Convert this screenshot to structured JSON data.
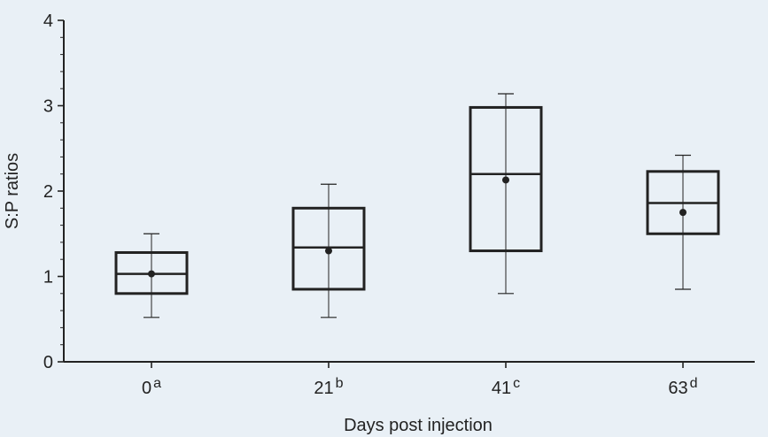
{
  "chart_data": {
    "type": "box",
    "xlabel": "Days post injection",
    "ylabel": "S:P ratios",
    "ylim": [
      0,
      4
    ],
    "yticks": [
      "0",
      "1",
      "2",
      "3",
      "4"
    ],
    "categories": [
      {
        "label": "0",
        "sup": "a"
      },
      {
        "label": "21",
        "sup": "b"
      },
      {
        "label": "41",
        "sup": "c"
      },
      {
        "label": "63",
        "sup": "d"
      }
    ],
    "boxes": [
      {
        "whisker_low": 0.52,
        "q1": 0.8,
        "median": 1.03,
        "q3": 1.28,
        "whisker_high": 1.5,
        "mean": 1.03
      },
      {
        "whisker_low": 0.52,
        "q1": 0.85,
        "median": 1.34,
        "q3": 1.8,
        "whisker_high": 2.08,
        "mean": 1.3
      },
      {
        "whisker_low": 0.8,
        "q1": 1.3,
        "median": 2.2,
        "q3": 2.98,
        "whisker_high": 3.14,
        "mean": 2.13
      },
      {
        "whisker_low": 0.85,
        "q1": 1.5,
        "median": 1.86,
        "q3": 2.23,
        "whisker_high": 2.42,
        "mean": 1.75
      }
    ],
    "colors": {
      "background": "#e9f0f6",
      "ink": "#222222"
    }
  }
}
